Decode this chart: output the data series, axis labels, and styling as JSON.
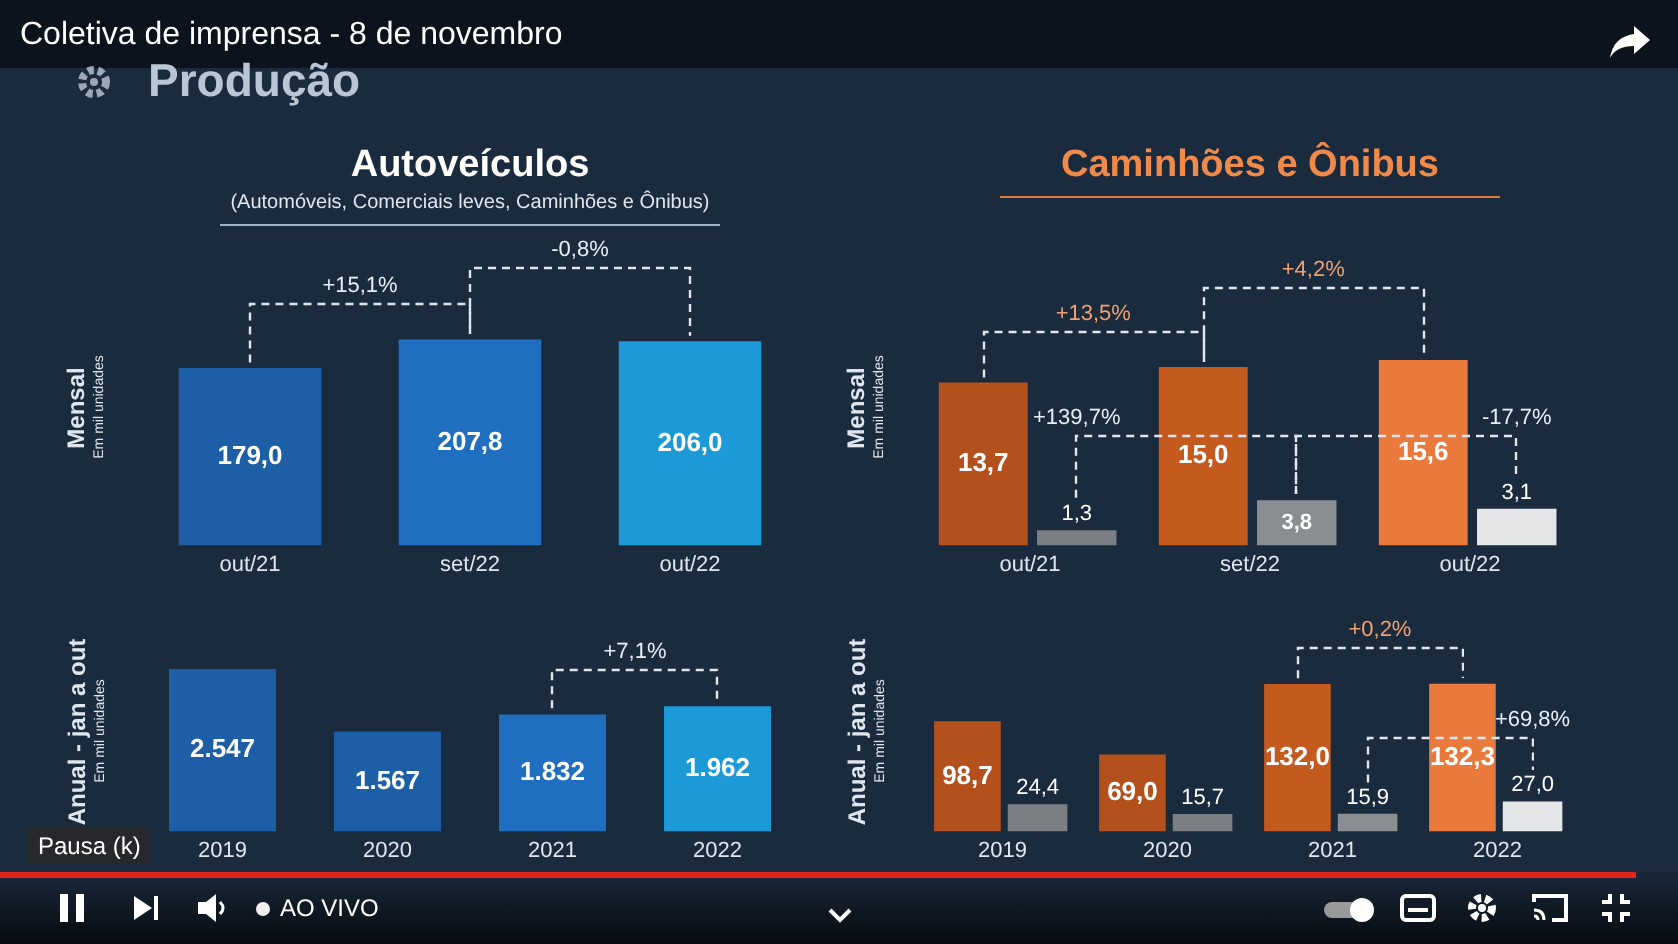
{
  "chart_data": [
    {
      "type": "other",
      "title": "Coletiva de imprensa - 8 de novembro",
      "subtitle": "Produção",
      "annotations": [
        "Pausa (k)",
        "AO VIVO"
      ]
    },
    {
      "type": "bar",
      "title": "Autoveículos",
      "subtitle": "(Automóveis, Comerciais leves, Caminhões e Ônibus)",
      "ylabel": "Mensal",
      "categories": [
        "out/21",
        "set/22",
        "out/22"
      ],
      "tick_labels": "x",
      "data_labels": true,
      "values": [
        179.0,
        207.8,
        206.0
      ],
      "colors": [
        "#1d5fa6",
        "#1f6ec0",
        "#1c9ad8"
      ],
      "value_labels": [
        "179,0",
        "207,8",
        "206,0"
      ],
      "annotations": [
        "Em mil unidades",
        "+15,1%",
        "-0,8%"
      ]
    },
    {
      "type": "bar",
      "title": "Caminhões e Ônibus",
      "ylabel": "Mensal",
      "categories": [
        "out/21",
        "set/22",
        "out/22"
      ],
      "tick_labels": "x",
      "data_labels": true,
      "series": [
        {
          "colors": [
            "#b4501c",
            "#c45a1e",
            "#ea7a3c"
          ],
          "values": [
            13.7,
            15.0,
            15.6
          ],
          "value_labels": [
            "13,7",
            "15,0",
            "15,6"
          ]
        },
        {
          "colors": [
            "#7b7f84",
            "#8a8e93",
            "#e4e6e8"
          ],
          "values": [
            1.3,
            3.8,
            3.1
          ],
          "value_labels": [
            "1,3",
            "3,8",
            "3,1"
          ]
        }
      ],
      "annotations": [
        "Em mil unidades",
        "+13,5%",
        "+4,2%",
        "+139,7%",
        "-17,7%"
      ]
    },
    {
      "type": "bar",
      "ylabel": "Anual - jan a out",
      "categories": [
        "2019",
        "2020",
        "2021",
        "2022"
      ],
      "tick_labels": "x",
      "data_labels": true,
      "values": [
        2547,
        1567,
        1832,
        1962
      ],
      "colors": [
        "#1d5fa6",
        "#1d5fa6",
        "#1f6ec0",
        "#1c9ad8"
      ],
      "value_labels": [
        "2.547",
        "1.567",
        "1.832",
        "1.962"
      ],
      "annotations": [
        "Em mil unidades",
        "+7,1%"
      ]
    },
    {
      "type": "bar",
      "ylabel": "Anual - jan a out",
      "categories": [
        "2019",
        "2020",
        "2021",
        "2022"
      ],
      "tick_labels": "x",
      "data_labels": true,
      "series": [
        {
          "colors": [
            "#b4501c",
            "#b4501c",
            "#c45a1e",
            "#ea7a3c"
          ],
          "values": [
            98.7,
            69.0,
            132.0,
            132.3
          ],
          "value_labels": [
            "98,7",
            "69,0",
            "132,0",
            "132,3"
          ]
        },
        {
          "colors": [
            "#7b7f84",
            "#7b7f84",
            "#8a8e93",
            "#e4e6e8"
          ],
          "values": [
            24.4,
            15.7,
            15.9,
            27.0
          ],
          "value_labels": [
            "24,4",
            "15,7",
            "15,9",
            "27,0"
          ]
        }
      ],
      "annotations": [
        "Em mil unidades",
        "+0,2%",
        "+69,8%"
      ]
    }
  ]
}
